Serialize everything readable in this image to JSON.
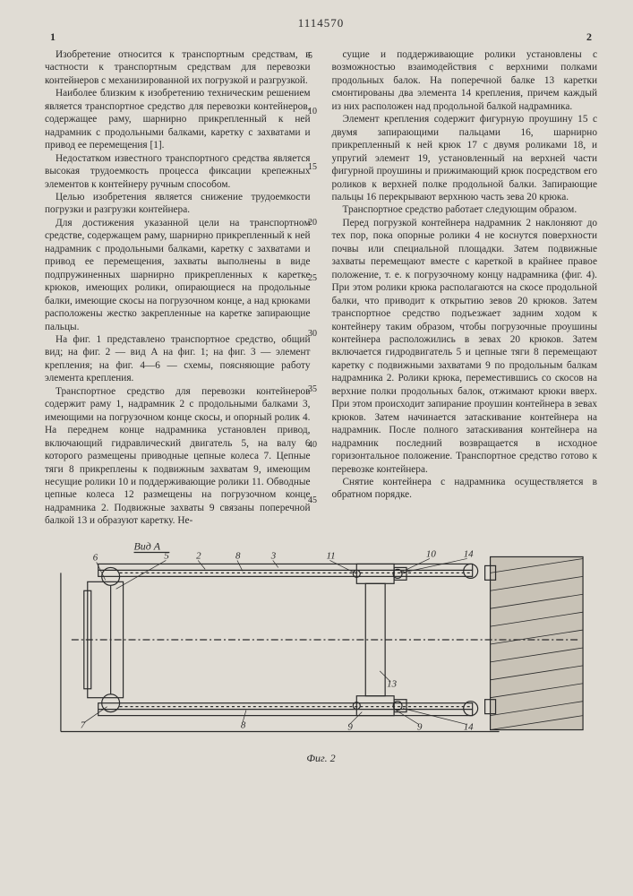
{
  "patent_number": "1114570",
  "page_left": "1",
  "page_right": "2",
  "line_refs": [
    "5",
    "10",
    "15",
    "20",
    "25",
    "30",
    "35",
    "40",
    "45"
  ],
  "col_left": [
    "Изобретение относится к транспортным средствам, в частности к транспортным средствам для перевозки контейнеров с механизированной их погрузкой и разгрузкой.",
    "Наиболее близким к изобретению техническим решением является транспортное средство для перевозки контейнеров, содержащее раму, шарнирно прикрепленный к ней надрамник с продольными балками, каретку с захватами и привод ее перемещения [1].",
    "Недостатком известного транспортного средства является высокая трудоемкость процесса фиксации крепежных элементов к контейнеру ручным способом.",
    "Целью изобретения является снижение трудоемкости погрузки и разгрузки контейнера.",
    "Для достижения указанной цели на транспортном средстве, содержащем раму, шарнирно прикрепленный к ней надрамник с продольными балками, каретку с захватами и привод ее перемещения, захваты выполнены в виде подпружиненных шарнирно прикрепленных к каретке крюков, имеющих ролики, опирающиеся на продольные балки, имеющие скосы на погрузочном конце, а над крюками расположены жестко закрепленные на каретке запирающие пальцы.",
    "На фиг. 1 представлено транспортное средство, общий вид; на фиг. 2 — вид А на фиг. 1; на фиг. 3 — элемент крепления; на фиг. 4—6 — схемы, поясняющие работу элемента крепления.",
    "Транспортное средство для перевозки контейнеров содержит раму 1, надрамник 2 с продольными балками 3, имеющими на погрузочном конце скосы, и опорный ролик 4. На переднем конце надрамника установлен привод, включающий гидравлический двигатель 5, на валу 6 которого размещены приводные цепные колеса 7. Цепные тяги 8 прикреплены к подвижным захватам 9, имеющим несущие ролики 10 и поддерживающие ролики 11. Обводные цепные колеса 12 размещены на погрузочном конце надрамника 2. Подвижные захваты 9 связаны поперечной балкой 13 и образуют каретку. Не-"
  ],
  "col_right": [
    "сущие и поддерживающие ролики установлены с возможностью взаимодействия с верхними полками продольных балок. На поперечной балке 13 каретки смонтированы два элемента 14 крепления, причем каждый из них расположен над продольной балкой надрамника.",
    "Элемент крепления содержит фигурную проушину 15 с двумя запирающими пальцами 16, шарнирно прикрепленный к ней крюк 17 с двумя роликами 18, и упругий элемент 19, установленный на верхней части фигурной проушины и прижимающий крюк посредством его роликов к верхней полке продольной балки. Запирающие пальцы 16 перекрывают верхнюю часть зева 20 крюка.",
    "Транспортное средство работает следующим образом.",
    "Перед погрузкой контейнера надрамник 2 наклоняют до тех пор, пока опорные ролики 4 не коснутся поверхности почвы или специальной площадки. Затем подвижные захваты перемещают вместе с кареткой в крайнее правое положение, т. е. к погрузочному концу надрамника (фиг. 4). При этом ролики крюка располагаются на скосе продольной балки, что приводит к открытию зевов 20 крюков. Затем транспортное средство подъезжает задним ходом к контейнеру таким образом, чтобы погрузочные проушины контейнера расположились в зевах 20 крюков. Затем включается гидродвигатель 5 и цепные тяги 8 перемещают каретку с подвижными захватами 9 по продольным балкам надрамника 2. Ролики крюка, переместившись со скосов на верхние полки продольных балок, отжимают крюки вверх. При этом происходит запирание проушин контейнера в зевах крюков. Затем начинается затаскивание контейнера на надрамник. После полного затаскивания контейнера на надрамник последний возвращается в исходное горизонтальное положение. Транспортное средство готово к перевозке контейнера.",
    "Снятие контейнера с надрамника осуществляется в обратном порядке."
  ],
  "fig_label_top": "Вид А",
  "fig_caption": "Фиг. 2",
  "fig_numbers": [
    "6",
    "5",
    "2",
    "8",
    "3",
    "11",
    "9",
    "8",
    "7",
    "13",
    "10",
    "14",
    "9",
    "14"
  ],
  "fig": {
    "stroke": "#2a2a2a",
    "bg": "#e0dcd4"
  }
}
